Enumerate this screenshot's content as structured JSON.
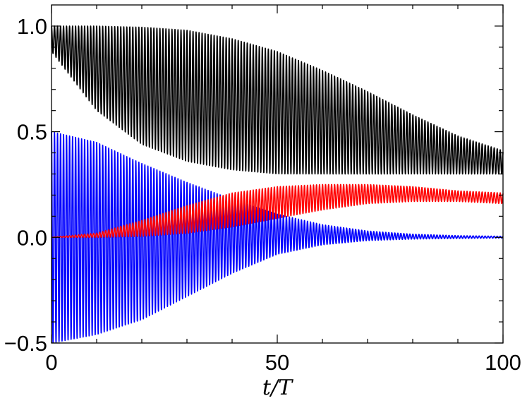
{
  "chart_data": {
    "type": "line",
    "title": "",
    "xlabel": "t/T",
    "ylabel": "",
    "xlim": [
      0,
      100
    ],
    "ylim": [
      -0.5,
      1.1
    ],
    "x_ticks": [
      0,
      50,
      100
    ],
    "x_tick_labels": [
      "0",
      "50",
      "100"
    ],
    "y_ticks": [
      -0.5,
      0.0,
      0.5,
      1.0
    ],
    "y_tick_labels": [
      "−0.5",
      "0.0",
      "0.5",
      "1.0"
    ],
    "grid": false,
    "legend": "none",
    "oscillation_period_t_over_T": 0.667,
    "series": [
      {
        "color": "#000000",
        "envelope": {
          "x": [
            0,
            10,
            20,
            30,
            40,
            50,
            60,
            70,
            80,
            90,
            100
          ],
          "upper": [
            1.0,
            1.0,
            0.995,
            0.98,
            0.94,
            0.88,
            0.79,
            0.69,
            0.58,
            0.48,
            0.41
          ],
          "lower": [
            0.88,
            0.6,
            0.44,
            0.36,
            0.32,
            0.3,
            0.3,
            0.3,
            0.3,
            0.3,
            0.3
          ]
        }
      },
      {
        "color": "#0000ff",
        "envelope": {
          "x": [
            0,
            10,
            20,
            30,
            40,
            50,
            60,
            70,
            80,
            90,
            100
          ],
          "upper": [
            0.5,
            0.45,
            0.35,
            0.26,
            0.18,
            0.11,
            0.06,
            0.03,
            0.015,
            0.008,
            0.005
          ],
          "lower": [
            -0.5,
            -0.46,
            -0.39,
            -0.28,
            -0.17,
            -0.08,
            -0.035,
            -0.015,
            -0.008,
            -0.005,
            -0.003
          ]
        }
      },
      {
        "color": "#ff0000",
        "envelope": {
          "x": [
            0,
            10,
            20,
            30,
            40,
            50,
            60,
            70,
            80,
            90,
            100
          ],
          "upper": [
            0.0,
            0.02,
            0.08,
            0.15,
            0.21,
            0.24,
            0.25,
            0.25,
            0.24,
            0.22,
            0.21
          ],
          "lower": [
            0.0,
            0.0,
            0.005,
            0.02,
            0.05,
            0.09,
            0.13,
            0.16,
            0.17,
            0.17,
            0.16
          ]
        }
      }
    ]
  }
}
